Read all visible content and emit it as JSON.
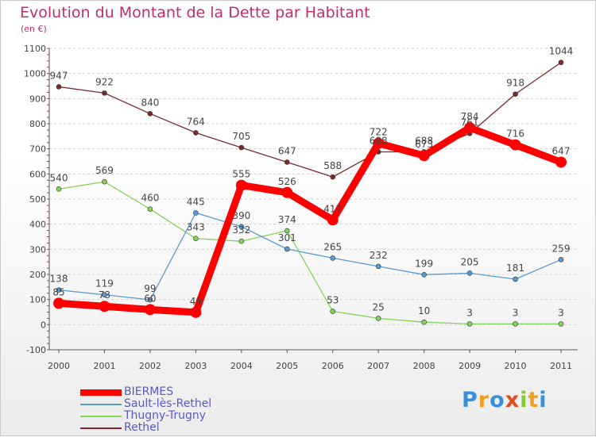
{
  "chart_data": {
    "type": "line",
    "title": "Evolution du Montant de la Dette par Habitant",
    "subtitle": "(en €)",
    "categories": [
      "2000",
      "2001",
      "2002",
      "2003",
      "2004",
      "2005",
      "2006",
      "2007",
      "2008",
      "2009",
      "2010",
      "2011"
    ],
    "ylim": [
      -100,
      1100
    ],
    "yticks": [
      "-100",
      "0",
      "100",
      "200",
      "300",
      "400",
      "500",
      "600",
      "700",
      "800",
      "900",
      "1000",
      "1100"
    ],
    "grid": "horizontal dashed",
    "legend_position": "bottom-left",
    "series": [
      {
        "name": "BIERMES",
        "values": [
          85,
          73,
          60,
          49,
          555,
          526,
          417,
          722,
          673,
          784,
          716,
          647
        ],
        "labels": [
          "85",
          "73",
          "60",
          "49",
          "555",
          "526",
          "417",
          "722",
          "673",
          "784",
          "716",
          "647"
        ],
        "color": "#ff0000"
      },
      {
        "name": "Sault-lès-Rethel",
        "values": [
          138,
          119,
          99,
          445,
          390,
          301,
          265,
          232,
          199,
          205,
          181,
          259
        ],
        "labels": [
          "138",
          "119",
          "99",
          "445",
          "390",
          "301",
          "265",
          "232",
          "199",
          "205",
          "181",
          "259"
        ],
        "color": "#5a9ad2"
      },
      {
        "name": "Thugny-Trugny",
        "values": [
          540,
          569,
          460,
          343,
          332,
          374,
          53,
          25,
          10,
          3,
          3,
          3
        ],
        "labels": [
          "540",
          "569",
          "460",
          "343",
          "332",
          "374",
          "53",
          "25",
          "10",
          "3",
          "3",
          "3"
        ],
        "color": "#86d35a"
      },
      {
        "name": "Rethel",
        "values": [
          947,
          922,
          840,
          764,
          705,
          647,
          588,
          688,
          688,
          761,
          918,
          1044
        ],
        "labels": [
          "947",
          "922",
          "840",
          "764",
          "705",
          "647",
          "588",
          "688",
          "688",
          "761",
          "918",
          "1044"
        ],
        "color": "#7a2a2a"
      }
    ]
  },
  "logo": {
    "letters": [
      "P",
      "r",
      "o",
      "x",
      "i",
      "t",
      "i"
    ],
    "colors": [
      "#3a8fd8",
      "#f2a020",
      "#3a8fd8",
      "#e84a20",
      "#86c83a",
      "#f2a020",
      "#3a8fd8"
    ]
  }
}
